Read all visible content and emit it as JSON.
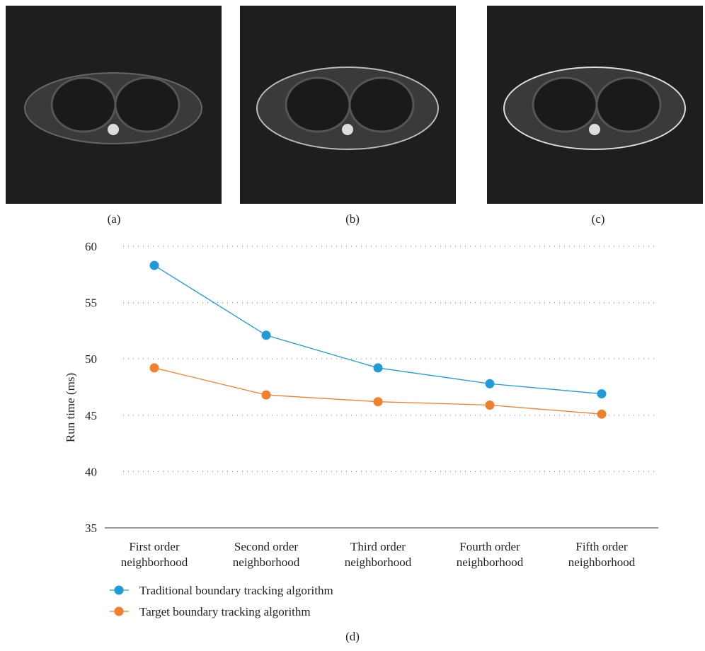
{
  "panels": [
    {
      "id": "a",
      "label": "(a)"
    },
    {
      "id": "b",
      "label": "(b)"
    },
    {
      "id": "c",
      "label": "(c)"
    },
    {
      "id": "d",
      "label": "(d)"
    }
  ],
  "chart_data": {
    "type": "line",
    "categories": [
      [
        "First order",
        "neighborhood"
      ],
      [
        "Second order",
        "neighborhood"
      ],
      [
        "Third order",
        "neighborhood"
      ],
      [
        "Fourth order",
        "neighborhood"
      ],
      [
        "Fifth order",
        "neighborhood"
      ]
    ],
    "series": [
      {
        "name": "Traditional boundary tracking algorithm",
        "color": "#1f9bd7",
        "values": [
          58.3,
          52.1,
          49.2,
          47.8,
          46.9
        ]
      },
      {
        "name": "Target boundary tracking algorithm",
        "color": "#f07f2e",
        "values": [
          49.2,
          46.8,
          46.2,
          45.9,
          45.1
        ]
      }
    ],
    "ylabel": "Run time (ms)",
    "ylim": [
      35,
      60
    ],
    "yticks": [
      35,
      40,
      45,
      50,
      55,
      60
    ],
    "grid": true,
    "legend_position": "bottom-left"
  }
}
